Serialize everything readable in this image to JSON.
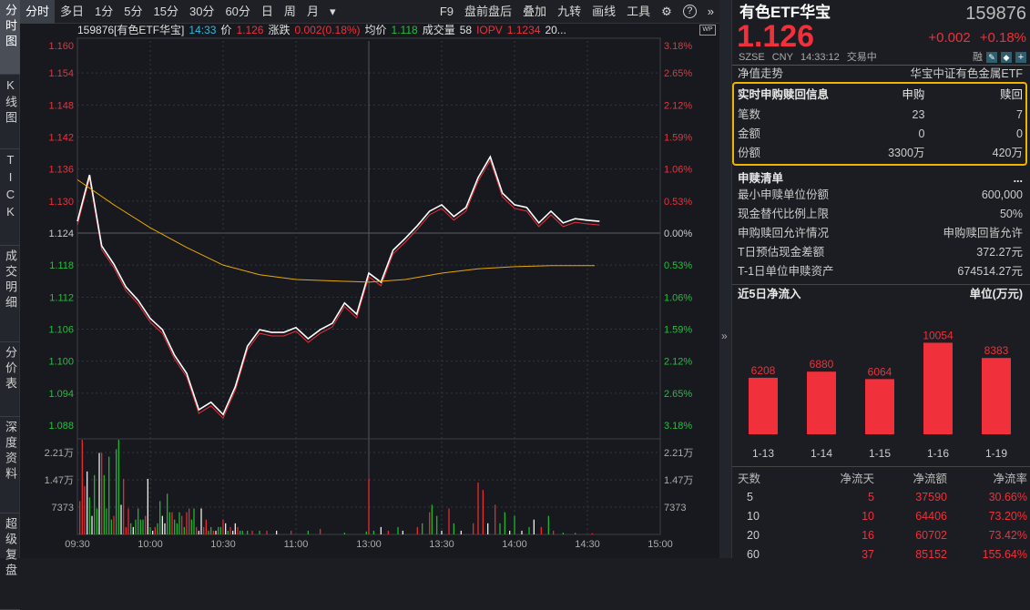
{
  "sidebar": {
    "tabs": [
      {
        "label": "分时图",
        "active": true
      },
      {
        "label": "K线图"
      },
      {
        "label": "TICK"
      },
      {
        "label": "成交明细"
      },
      {
        "label": "分价表"
      },
      {
        "label": "深度资料"
      },
      {
        "label": "超级复盘"
      }
    ]
  },
  "toolbar": {
    "periods": [
      "分时",
      "多日",
      "1分",
      "5分",
      "15分",
      "30分",
      "60分",
      "日",
      "周",
      "月"
    ],
    "more": "▾",
    "tools": [
      "F9",
      "盘前盘后",
      "叠加",
      "九转",
      "画线",
      "工具"
    ],
    "icons": [
      "gear-icon",
      "help-icon",
      "expand-icon"
    ],
    "help": "?",
    "expand": "»"
  },
  "infobar": {
    "code_name": "159876[有色ETF华宝]",
    "time": "14:33",
    "price_label": "价",
    "price": "1.126",
    "change_label": "涨跌",
    "change": "0.002(0.18%)",
    "avg_label": "均价",
    "avg": "1.118",
    "vol_label": "成交量",
    "vol": "58",
    "iopv_label": "IOPV",
    "iopv": "1.1234",
    "more": "20...",
    "wp": "WP"
  },
  "chart_data": {
    "type": "line",
    "prev_close": 1.124,
    "price_ticks_left": [
      "1.160",
      "1.154",
      "1.148",
      "1.142",
      "1.136",
      "1.130",
      "1.124",
      "1.118",
      "1.112",
      "1.106",
      "1.100",
      "1.094",
      "1.088"
    ],
    "pct_ticks_right": [
      "3.18%",
      "2.65%",
      "2.12%",
      "1.59%",
      "1.06%",
      "0.53%",
      "0.00%",
      "0.53%",
      "1.06%",
      "1.59%",
      "2.12%",
      "2.65%",
      "3.18%"
    ],
    "ylim": [
      1.088,
      1.16
    ],
    "volume_ticks": [
      "2.21万",
      "1.47万",
      "7373"
    ],
    "volume_tick_values": [
      22100,
      14700,
      7373
    ],
    "time_labels": [
      "09:30",
      "10:00",
      "10:30",
      "11:00",
      "13:00",
      "13:30",
      "14:00",
      "14:30",
      "15:00"
    ],
    "price_series": {
      "step_minutes": 5,
      "values": [
        1.1262,
        1.1349,
        1.1216,
        1.1182,
        1.1139,
        1.1114,
        1.108,
        1.1059,
        1.1011,
        1.0977,
        1.0909,
        1.0923,
        1.09,
        1.0952,
        1.1028,
        1.1059,
        1.1054,
        1.1054,
        1.1063,
        1.1042,
        1.1059,
        1.1071,
        1.1109,
        1.1088,
        1.1165,
        1.1148,
        1.1208,
        1.123,
        1.1254,
        1.1281,
        1.1293,
        1.1271,
        1.1288,
        1.1344,
        1.1383,
        1.1315,
        1.1293,
        1.1288,
        1.1259,
        1.1281,
        1.1259,
        1.1267,
        1.1264,
        1.1262
      ]
    },
    "avg_series": {
      "minutes": [
        0,
        15,
        30,
        45,
        60,
        75,
        90,
        120,
        135,
        150,
        165,
        180,
        195,
        213
      ],
      "values": [
        1.134,
        1.1293,
        1.125,
        1.1213,
        1.118,
        1.1162,
        1.1153,
        1.1148,
        1.1153,
        1.1165,
        1.1173,
        1.1177,
        1.1179,
        1.1179
      ]
    },
    "volume": [
      [
        1,
        9000,
        "r"
      ],
      [
        2,
        36000,
        "r"
      ],
      [
        3,
        13000,
        "r"
      ],
      [
        4,
        17000,
        "w"
      ],
      [
        5,
        10000,
        "g"
      ],
      [
        6,
        5000,
        "w"
      ],
      [
        7,
        16000,
        "g"
      ],
      [
        8,
        7000,
        "g"
      ],
      [
        9,
        22000,
        "w"
      ],
      [
        10,
        22000,
        "r"
      ],
      [
        11,
        16000,
        "g"
      ],
      [
        12,
        7000,
        "g"
      ],
      [
        13,
        21000,
        "g"
      ],
      [
        14,
        4000,
        "g"
      ],
      [
        15,
        5000,
        "r"
      ],
      [
        16,
        23000,
        "g"
      ],
      [
        17,
        34000,
        "g"
      ],
      [
        18,
        8000,
        "w"
      ],
      [
        19,
        15000,
        "r"
      ],
      [
        20,
        2000,
        "r"
      ],
      [
        21,
        7000,
        "r"
      ],
      [
        22,
        3000,
        "g"
      ],
      [
        23,
        2000,
        "w"
      ],
      [
        24,
        4000,
        "g"
      ],
      [
        25,
        7000,
        "g"
      ],
      [
        26,
        4000,
        "g"
      ],
      [
        27,
        4000,
        "g"
      ],
      [
        28,
        5000,
        "r"
      ],
      [
        29,
        15000,
        "w"
      ],
      [
        30,
        2000,
        "g"
      ],
      [
        31,
        1000,
        "w"
      ],
      [
        32,
        2000,
        "r"
      ],
      [
        33,
        3000,
        "g"
      ],
      [
        34,
        9000,
        "g"
      ],
      [
        35,
        5000,
        "w"
      ],
      [
        36,
        3000,
        "w"
      ],
      [
        37,
        11000,
        "g"
      ],
      [
        38,
        6000,
        "g"
      ],
      [
        39,
        6000,
        "r"
      ],
      [
        40,
        4000,
        "g"
      ],
      [
        41,
        3000,
        "g"
      ],
      [
        42,
        6000,
        "g"
      ],
      [
        43,
        5000,
        "r"
      ],
      [
        44,
        2000,
        "g"
      ],
      [
        45,
        6000,
        "r"
      ],
      [
        46,
        7000,
        "r"
      ],
      [
        47,
        4000,
        "g"
      ],
      [
        48,
        7000,
        "g"
      ],
      [
        49,
        2000,
        "r"
      ],
      [
        50,
        1000,
        "w"
      ],
      [
        51,
        7000,
        "w"
      ],
      [
        52,
        2000,
        "r"
      ],
      [
        53,
        4000,
        "r"
      ],
      [
        54,
        1000,
        "g"
      ],
      [
        55,
        2000,
        "g"
      ],
      [
        56,
        1000,
        "r"
      ],
      [
        57,
        1000,
        "w"
      ],
      [
        58,
        2000,
        "g"
      ],
      [
        59,
        2000,
        "g"
      ],
      [
        60,
        4000,
        "r"
      ],
      [
        61,
        3000,
        "w"
      ],
      [
        62,
        1000,
        "g"
      ],
      [
        63,
        2000,
        "r"
      ],
      [
        64,
        1000,
        "w"
      ],
      [
        65,
        3000,
        "w"
      ],
      [
        66,
        2000,
        "r"
      ],
      [
        67,
        1000,
        "g"
      ],
      [
        68,
        1000,
        "g"
      ],
      [
        70,
        1000,
        "g"
      ],
      [
        72,
        1000,
        "r"
      ],
      [
        75,
        1000,
        "g"
      ],
      [
        78,
        1000,
        "r"
      ],
      [
        82,
        1000,
        "w"
      ],
      [
        88,
        1000,
        "r"
      ],
      [
        95,
        1000,
        "g"
      ],
      [
        100,
        1500,
        "r"
      ],
      [
        110,
        500,
        "g"
      ],
      [
        119,
        800,
        "g"
      ],
      [
        120,
        15000,
        "r"
      ],
      [
        122,
        1000,
        "g"
      ],
      [
        125,
        2000,
        "w"
      ],
      [
        128,
        1000,
        "r"
      ],
      [
        132,
        2000,
        "g"
      ],
      [
        134,
        1000,
        "w"
      ],
      [
        140,
        2000,
        "r"
      ],
      [
        142,
        3000,
        "g"
      ],
      [
        145,
        6000,
        "r"
      ],
      [
        146,
        8000,
        "g"
      ],
      [
        148,
        5000,
        "g"
      ],
      [
        150,
        1000,
        "w"
      ],
      [
        153,
        7000,
        "r"
      ],
      [
        155,
        3000,
        "g"
      ],
      [
        158,
        1000,
        "w"
      ],
      [
        163,
        3000,
        "r"
      ],
      [
        165,
        14000,
        "r"
      ],
      [
        167,
        12000,
        "r"
      ],
      [
        169,
        3000,
        "w"
      ],
      [
        172,
        8000,
        "r"
      ],
      [
        174,
        3000,
        "g"
      ],
      [
        176,
        6000,
        "g"
      ],
      [
        178,
        1000,
        "w"
      ],
      [
        180,
        5000,
        "g"
      ],
      [
        183,
        1000,
        "w"
      ],
      [
        186,
        2000,
        "g"
      ],
      [
        188,
        4000,
        "w"
      ],
      [
        191,
        2000,
        "r"
      ],
      [
        194,
        5000,
        "g"
      ],
      [
        196,
        1000,
        "r"
      ],
      [
        200,
        500,
        "g"
      ],
      [
        205,
        400,
        "g"
      ],
      [
        212,
        300,
        "r"
      ]
    ]
  },
  "right": {
    "name": "有色ETF华宝",
    "code": "159876",
    "price": "1.126",
    "change": "+0.002",
    "change_pct": "+0.18%",
    "status": [
      "SZSE",
      "CNY",
      "14:33:12",
      "交易中"
    ],
    "rong": "融",
    "nav_label": "净值走势",
    "nav_value": "华宝中证有色金属ETF",
    "realtime": {
      "title": "实时申购赎回信息",
      "col1": "申购",
      "col2": "赎回",
      "rows": [
        {
          "label": "笔数",
          "a": "23",
          "b": "7"
        },
        {
          "label": "金额",
          "a": "0",
          "b": "0"
        },
        {
          "label": "份额",
          "a": "3300万",
          "b": "420万"
        }
      ]
    },
    "list": {
      "title": "申赎清单",
      "more": "...",
      "rows": [
        {
          "label": "最小申赎单位份额",
          "value": "600,000"
        },
        {
          "label": "现金替代比例上限",
          "value": "50%"
        },
        {
          "label": "申购赎回允许情况",
          "value": "申购赎回皆允许"
        },
        {
          "label": "T日预估现金差额",
          "value": "372.27元"
        },
        {
          "label": "T-1日单位申赎资产",
          "value": "674514.27元"
        }
      ]
    },
    "inflow": {
      "title": "近5日净流入",
      "unit": "单位(万元)",
      "bars": [
        {
          "date": "1-13",
          "value": 6208
        },
        {
          "date": "1-14",
          "value": 6880
        },
        {
          "date": "1-15",
          "value": 6064
        },
        {
          "date": "1-16",
          "value": 10054
        },
        {
          "date": "1-19",
          "value": 8383
        }
      ]
    },
    "flow_table": {
      "headers": [
        "天数",
        "净流天",
        "净流额",
        "净流率"
      ],
      "rows": [
        [
          "5",
          "5",
          "37590",
          "30.66%"
        ],
        [
          "10",
          "10",
          "64406",
          "73.20%"
        ],
        [
          "20",
          "16",
          "60702",
          "73.42%"
        ],
        [
          "60",
          "37",
          "85152",
          "155.64%"
        ]
      ]
    }
  },
  "colors": {
    "up": "#f0303a",
    "down": "#22c13a",
    "avg": "#e8a800",
    "highlight": "#f0b400"
  }
}
